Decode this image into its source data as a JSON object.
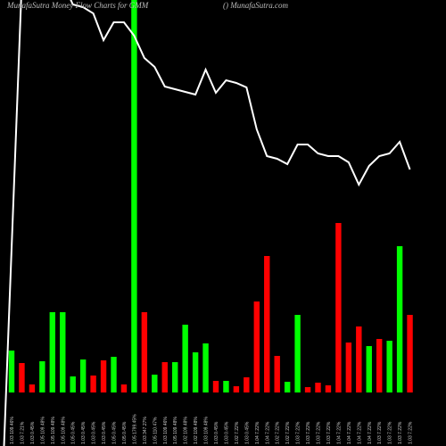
{
  "chart_data": {
    "type": "bar",
    "title": "MunafaSutra  Money Flow  Charts for GMM",
    "subtitle": "() MunafaSutra.com",
    "categories": [
      "1.03 109.46%",
      "1.03 7.21%",
      "1.03 0.45%",
      "1.05 109.48%",
      "1.05 109.48%",
      "1.05 109.48%",
      "1.05 0.45%",
      "1.03 0.45%",
      "1.03 0.45%",
      "1.03 0.45%",
      "1.05 0.45%",
      "1.05 0.45%",
      "1.05 1799.45%",
      "1.03 347.27%",
      "1.05 110.47%",
      "1.03 109.46%",
      "1.05 109.48%",
      "1.02 109.48%",
      "1.02 109.48%",
      "1.03 109.48%",
      "1.03 0.45%",
      "1.03 0.45%",
      "1.02 7.22%",
      "1.03 0.45%",
      "1.04 7.22%",
      "1.04 7.22%",
      "1.02 7.22%",
      "1.02 7.22%",
      "1.03 7.22%",
      "1.03 7.22%",
      "1.03 7.22%",
      "1.03 7.22%",
      "1.04 7.22%",
      "1.04 7.22%",
      "1.04 7.22%",
      "1.04 7.22%",
      "1.03 7.22%",
      "1.03 7.22%",
      "1.03 7.22%",
      "1.03 7.22%"
    ],
    "series": [
      {
        "name": "money-flow",
        "colors": [
          "#00ff00",
          "#ff0000",
          "#ff0000",
          "#00ff00",
          "#00ff00",
          "#00ff00",
          "#00ff00",
          "#00ff00",
          "#ff0000",
          "#ff0000",
          "#00ff00",
          "#ff0000",
          "#00ff00",
          "#ff0000",
          "#00ff00",
          "#ff0000",
          "#00ff00",
          "#00ff00",
          "#00ff00",
          "#00ff00",
          "#ff0000",
          "#00ff00",
          "#ff0000",
          "#ff0000",
          "#ff0000",
          "#ff0000",
          "#ff0000",
          "#00ff00",
          "#00ff00",
          "#ff0000",
          "#ff0000",
          "#ff0000",
          "#ff0000",
          "#ff0000",
          "#ff0000",
          "#00ff00",
          "#ff0000",
          "#00ff00",
          "#00ff00",
          "#ff0000"
        ],
        "values": [
          47,
          33,
          9,
          35,
          90,
          90,
          18,
          37,
          19,
          36,
          40,
          9,
          440,
          90,
          20,
          34,
          34,
          76,
          45,
          55,
          13,
          13,
          7,
          17,
          102,
          153,
          41,
          12,
          87,
          6,
          11,
          8,
          190,
          56,
          74,
          52,
          60,
          58,
          164,
          87
        ]
      },
      {
        "name": "price",
        "type": "line",
        "color": "#ffffff",
        "axis": "y2",
        "values": [
          0,
          520,
          520,
          520,
          520,
          520,
          495,
          492,
          485,
          455,
          475,
          475,
          460,
          435,
          425,
          403,
          400,
          397,
          394,
          422,
          396,
          410,
          407,
          402,
          355,
          325,
          322,
          316,
          338,
          338,
          328,
          325,
          325,
          318,
          293,
          314,
          325,
          328,
          341,
          310
        ]
      }
    ],
    "ylim": [
      0,
      440
    ],
    "y2lim": [
      0,
      500
    ],
    "gridline_color": "#b8650a"
  }
}
